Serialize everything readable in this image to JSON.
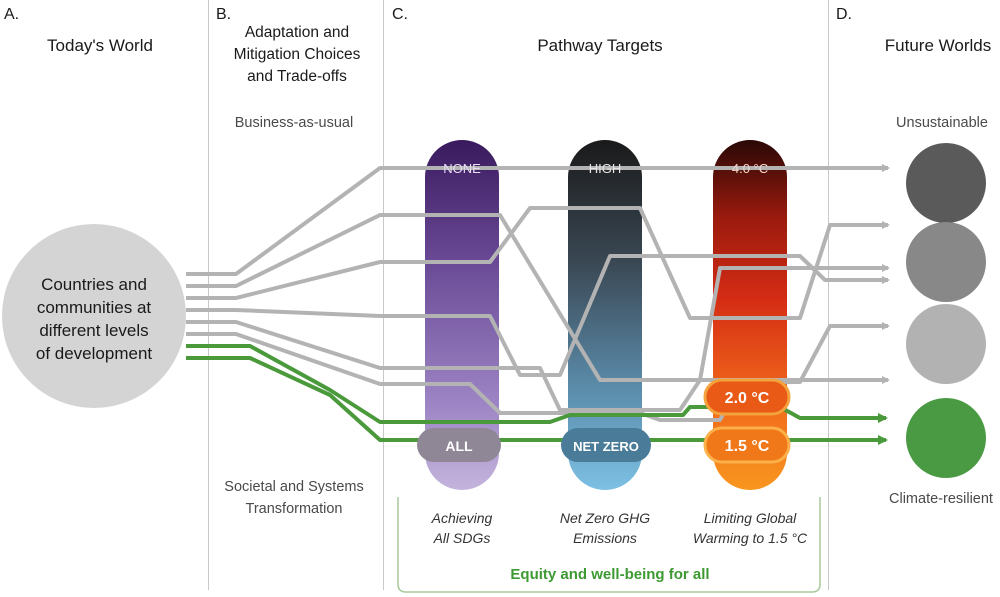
{
  "colors": {
    "path_gray": "#b3b3b3",
    "path_green": "#4a9a3c",
    "sdg_purple": "#3c1d63",
    "ghg_black": "#1c1c1c",
    "temp_red": "#d42a12",
    "equity_green": "#3e9a32",
    "world_unsustainable": "#5a5a5a",
    "world_mid1": "#888888",
    "world_mid2": "#b2b2b2",
    "world_resilient": "#4a9a44"
  },
  "sections": {
    "a": {
      "letter": "A.",
      "title": "Today's World"
    },
    "b": {
      "letter": "B.",
      "title": "Adaptation and Mitigation Choices and Trade-offs",
      "top_label": "Business-as-usual",
      "bottom_label_line1": "Societal and Systems",
      "bottom_label_line2": "Transformation"
    },
    "c": {
      "letter": "C.",
      "title": "Pathway Targets"
    },
    "d": {
      "letter": "D.",
      "title": "Future Worlds",
      "top_label": "Unsustainable",
      "bottom_label": "Climate-resilient"
    }
  },
  "today_circle": {
    "line1": "Countries and",
    "line2": "communities at",
    "line3": "different levels",
    "line4": "of development"
  },
  "bars": {
    "sdgs": {
      "top": "NONE",
      "bottom": "ALL",
      "caption_line1": "Achieving",
      "caption_line2": "All SDGs"
    },
    "ghg": {
      "top": "HIGH",
      "bottom": "NET ZERO",
      "caption_line1": "Net Zero GHG",
      "caption_line2": "Emissions"
    },
    "warming": {
      "top": "4.0 °C",
      "mid": "2.0 °C",
      "bottom": "1.5 °C",
      "caption_line1": "Limiting Global",
      "caption_line2": "Warming to 1.5 °C"
    }
  },
  "equity_label": "Equity and well-being for all"
}
